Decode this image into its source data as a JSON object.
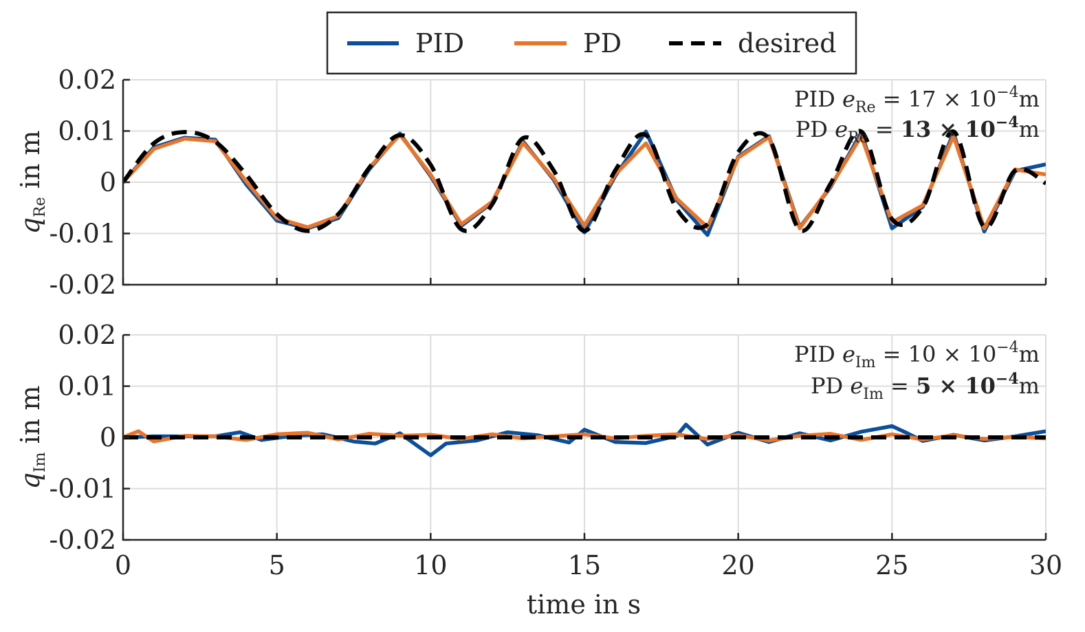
{
  "chart_data": {
    "type": "line",
    "xlabel": "time in s",
    "xlim": [
      0,
      30
    ],
    "x_ticks": [
      "0",
      "5",
      "10",
      "15",
      "20",
      "25",
      "30"
    ],
    "y_ticks": [
      "0.02",
      "0.01",
      "0",
      "-0.01",
      "-0.02"
    ],
    "legend": {
      "placement": "top-center",
      "entries": [
        {
          "name": "PID",
          "color": "#0b4f9c",
          "style": "solid"
        },
        {
          "name": "PD",
          "color": "#e8752a",
          "style": "solid"
        },
        {
          "name": "desired",
          "color": "#000000",
          "style": "dashed"
        }
      ]
    },
    "panels": [
      {
        "id": "re",
        "ylabel": {
          "var": "q",
          "sub": "Re",
          "unit": " in m"
        },
        "ylim": [
          -0.02,
          0.02
        ],
        "annotations": [
          {
            "label": "PID",
            "var": "e",
            "sub": "Re",
            "eq": " = ",
            "value": "17",
            "times": " × ",
            "base": "10",
            "exp": "−4",
            "unit": "m",
            "bold": false
          },
          {
            "label": "PD",
            "var": "e",
            "sub": "Re",
            "eq": " = ",
            "value": "13",
            "times": " × ",
            "base": "10",
            "exp": "−4",
            "unit": "m",
            "bold": true
          }
        ],
        "series": [
          {
            "name": "desired",
            "x": [
              0,
              1,
              2,
              3,
              4,
              5,
              6,
              7,
              8,
              9,
              10,
              11,
              12,
              13,
              14,
              15,
              16,
              17,
              18,
              19,
              20,
              21,
              22,
              23,
              24,
              25,
              26,
              27,
              28,
              29,
              30
            ],
            "y": [
              0,
              0.0076,
              0.0098,
              0.0079,
              0.0015,
              -0.0062,
              -0.0095,
              -0.0062,
              0.0028,
              0.0092,
              0.0034,
              -0.0092,
              -0.0043,
              0.0086,
              0.0023,
              -0.0095,
              0.0023,
              0.0092,
              -0.0052,
              -0.0082,
              0.0059,
              0.0085,
              -0.0093,
              -0.0003,
              0.0099,
              -0.0072,
              -0.0049,
              0.0099,
              -0.0087,
              0.0023,
              -0.0002
            ]
          },
          {
            "name": "PID",
            "x": [
              0,
              1,
              2,
              3,
              4,
              5,
              6,
              7,
              8,
              9,
              10,
              11,
              12,
              13,
              14,
              15,
              16,
              17,
              18,
              19,
              20,
              21,
              22,
              23,
              24,
              25,
              26,
              27,
              28,
              29,
              30
            ],
            "y": [
              0,
              0.0068,
              0.0087,
              0.0083,
              -0.0004,
              -0.0075,
              -0.009,
              -0.007,
              0.0025,
              0.0095,
              0.0012,
              -0.0085,
              -0.004,
              0.008,
              0.0005,
              -0.0098,
              0.0012,
              0.0099,
              -0.0035,
              -0.0103,
              0.005,
              0.009,
              -0.0088,
              -0.001,
              0.0097,
              -0.009,
              -0.0048,
              0.0096,
              -0.0096,
              0.0022,
              0.0035
            ]
          },
          {
            "name": "PD",
            "x": [
              0,
              1,
              2,
              3,
              4,
              5,
              6,
              7,
              8,
              9,
              10,
              11,
              12,
              13,
              14,
              15,
              16,
              17,
              18,
              19,
              20,
              21,
              22,
              23,
              24,
              25,
              26,
              27,
              28,
              29,
              30
            ],
            "y": [
              0,
              0.0065,
              0.0085,
              0.008,
              0.0002,
              -0.007,
              -0.0088,
              -0.0066,
              0.0028,
              0.0093,
              0.0015,
              -0.0082,
              -0.0038,
              0.0077,
              0.0008,
              -0.0085,
              0.0015,
              0.0076,
              -0.0032,
              -0.0088,
              0.0048,
              0.0088,
              -0.009,
              -0.0008,
              0.009,
              -0.0078,
              -0.0045,
              0.009,
              -0.009,
              0.0025,
              0.0015
            ]
          }
        ]
      },
      {
        "id": "im",
        "ylabel": {
          "var": "q",
          "sub": "Im",
          "unit": " in m"
        },
        "ylim": [
          -0.02,
          0.02
        ],
        "annotations": [
          {
            "label": "PID",
            "var": "e",
            "sub": "Im",
            "eq": " = ",
            "value": "10",
            "times": " × ",
            "base": "10",
            "exp": "−4",
            "unit": "m",
            "bold": false
          },
          {
            "label": "PD",
            "var": "e",
            "sub": "Im",
            "eq": " = ",
            "value": "5",
            "times": " × ",
            "base": "10",
            "exp": "−4",
            "unit": "m",
            "bold": true
          }
        ],
        "series": [
          {
            "name": "desired",
            "x": [
              0,
              30
            ],
            "y": [
              0,
              0
            ]
          },
          {
            "name": "PID",
            "x": [
              0,
              1,
              2,
              3,
              3.8,
              4.5,
              5.5,
              6.5,
              7.5,
              8.2,
              9,
              10,
              10.5,
              11.5,
              12.5,
              13.5,
              14.5,
              15,
              16,
              17,
              18,
              18.3,
              19,
              20,
              21,
              22,
              23,
              24,
              25,
              25.5,
              26,
              27,
              28,
              29,
              30
            ],
            "y": [
              0,
              0.0002,
              0.0002,
              0.0002,
              0.001,
              -0.0005,
              0.0003,
              0.0006,
              -0.0008,
              -0.0012,
              0.0008,
              -0.0035,
              -0.0012,
              -0.0006,
              0.001,
              0.0004,
              -0.001,
              0.0015,
              -0.0009,
              -0.0011,
              0.0003,
              0.0025,
              -0.0014,
              0.0009,
              -0.0009,
              0.0008,
              -0.0006,
              0.0011,
              0.0022,
              0.0008,
              -0.0007,
              0.0005,
              -0.0006,
              0.0002,
              0.0012
            ]
          },
          {
            "name": "PD",
            "x": [
              0,
              0.5,
              1,
              2,
              3,
              4,
              5,
              6,
              7,
              8,
              9,
              10,
              11,
              12,
              13,
              14,
              15,
              16,
              17,
              18,
              19,
              20,
              21,
              22,
              23,
              24,
              25,
              26,
              27,
              28,
              29,
              30
            ],
            "y": [
              0,
              0.0012,
              -0.0008,
              0.0003,
              0.0002,
              -0.0005,
              0.0006,
              0.0009,
              -0.0004,
              0.0007,
              0.0003,
              0.0005,
              -0.0003,
              0.0006,
              -0.0002,
              0.0002,
              0.0006,
              -0.0002,
              0.0003,
              0.0006,
              -0.0003,
              0.0004,
              -0.0006,
              0.0003,
              0.0007,
              -0.0005,
              0.0006,
              -0.0004,
              0.0004,
              -0.0003,
              0.0001,
              -0.0002
            ]
          }
        ]
      }
    ]
  }
}
